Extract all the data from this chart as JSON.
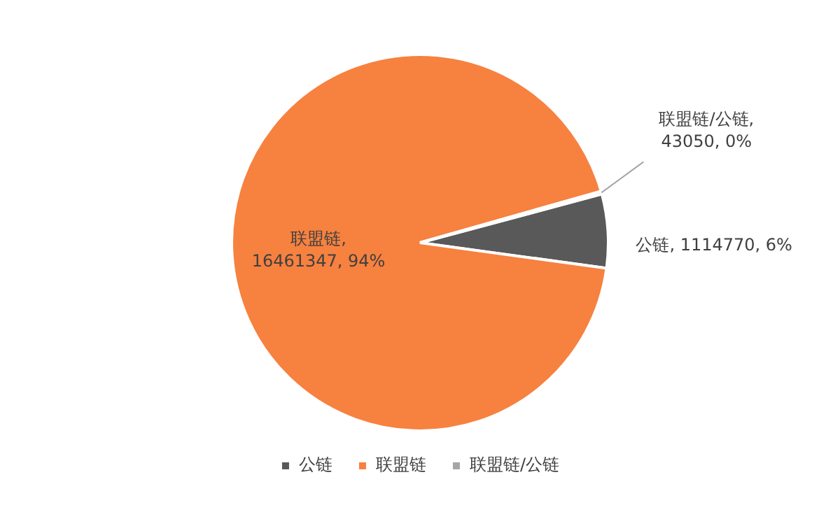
{
  "chart_data": {
    "type": "pie",
    "categories": [
      "公链",
      "联盟链",
      "联盟链/公链"
    ],
    "values": [
      1114770,
      16461347,
      43050
    ],
    "colors": [
      "#595959",
      "#f7813f",
      "#a5a5a5"
    ],
    "value_labels": [
      "公链, 1114770, 6%",
      "联盟链, 16461347, 94%",
      "联盟链/公链, 43050, 0%"
    ],
    "legend": "bottom"
  }
}
